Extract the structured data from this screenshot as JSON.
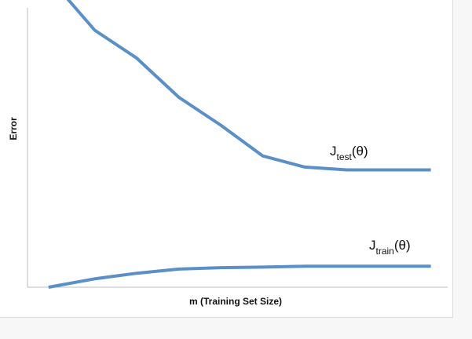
{
  "chart_data": {
    "type": "line",
    "xlabel": "m (Training Set Size)",
    "ylabel": "Error",
    "grid": false,
    "legend": "none",
    "xlim": [
      0,
      10
    ],
    "ylim": [
      0,
      10
    ],
    "colors": {
      "line": "#5b8fc7",
      "axis": "#bdbdbd",
      "text": "#111111"
    },
    "series": [
      {
        "label_main": "J",
        "label_sub": "test",
        "label_tail": "(θ)",
        "x": [
          0.85,
          1.6,
          2.6,
          3.6,
          4.6,
          5.6,
          6.6,
          7.6,
          9.6
        ],
        "y": [
          10.5,
          9.2,
          8.2,
          6.8,
          5.8,
          4.7,
          4.3,
          4.2,
          4.2
        ]
      },
      {
        "label_main": "J",
        "label_sub": "train",
        "label_tail": "(θ)",
        "x": [
          0.5,
          1.6,
          2.6,
          3.6,
          4.6,
          5.6,
          6.6,
          7.6,
          9.6
        ],
        "y": [
          0.0,
          0.3,
          0.5,
          0.65,
          0.7,
          0.72,
          0.75,
          0.75,
          0.75
        ]
      }
    ]
  }
}
